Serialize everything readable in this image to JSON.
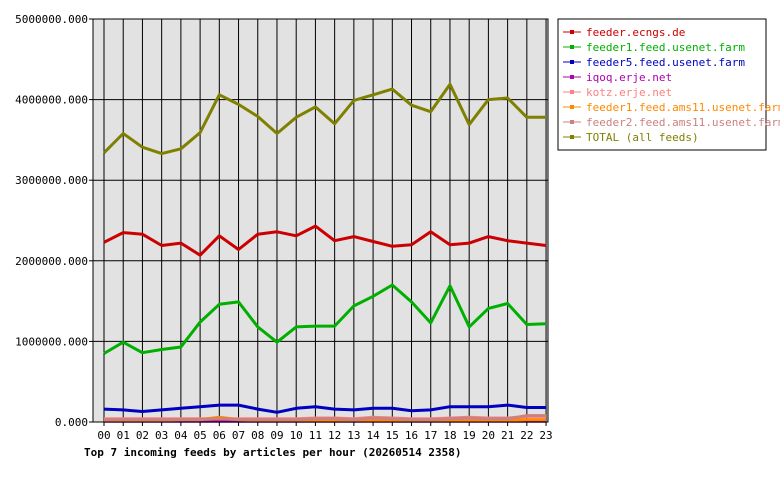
{
  "chart_data": {
    "type": "line",
    "title": "Top 7 incoming feeds by articles per hour (20260514 2358)",
    "xlabel": "",
    "ylabel": "",
    "categories": [
      "00",
      "01",
      "02",
      "03",
      "04",
      "05",
      "06",
      "07",
      "08",
      "09",
      "10",
      "11",
      "12",
      "13",
      "14",
      "15",
      "16",
      "17",
      "18",
      "19",
      "20",
      "21",
      "22",
      "23"
    ],
    "y_ticks": [
      "0.000",
      "1000000.000",
      "2000000.000",
      "3000000.000",
      "4000000.000",
      "5000000.000"
    ],
    "ylim": [
      0,
      5000000
    ],
    "grid": true,
    "legend_placement": "right",
    "series": [
      {
        "name": "feeder.ecngs.de",
        "color": "#cc0000",
        "values": [
          2230000,
          2350000,
          2330000,
          2190000,
          2220000,
          2070000,
          2310000,
          2140000,
          2330000,
          2360000,
          2310000,
          2430000,
          2250000,
          2300000,
          2240000,
          2180000,
          2200000,
          2360000,
          2200000,
          2220000,
          2300000,
          2250000,
          2220000,
          2190000
        ]
      },
      {
        "name": "feeder1.feed.usenet.farm",
        "color": "#00b000",
        "values": [
          850000,
          990000,
          860000,
          900000,
          930000,
          1240000,
          1460000,
          1490000,
          1180000,
          990000,
          1180000,
          1190000,
          1190000,
          1440000,
          1560000,
          1700000,
          1490000,
          1230000,
          1690000,
          1180000,
          1410000,
          1470000,
          1210000,
          1220000
        ]
      },
      {
        "name": "feeder5.feed.usenet.farm",
        "color": "#0000c0",
        "values": [
          160000,
          150000,
          130000,
          150000,
          170000,
          190000,
          210000,
          210000,
          160000,
          120000,
          170000,
          190000,
          160000,
          150000,
          170000,
          170000,
          140000,
          150000,
          190000,
          190000,
          190000,
          210000,
          180000,
          180000
        ]
      },
      {
        "name": "iqoq.erje.net",
        "color": "#b000b0",
        "values": [
          10000,
          10000,
          10000,
          10000,
          10000,
          10000,
          10000,
          10000,
          10000,
          10000,
          10000,
          10000,
          10000,
          10000,
          10000,
          10000,
          10000,
          10000,
          10000,
          10000,
          10000,
          10000,
          10000,
          10000
        ]
      },
      {
        "name": "kotz.erje.net",
        "color": "#ff8080",
        "values": [
          40000,
          40000,
          40000,
          40000,
          40000,
          40000,
          40000,
          40000,
          40000,
          40000,
          40000,
          50000,
          50000,
          40000,
          60000,
          50000,
          40000,
          40000,
          50000,
          60000,
          50000,
          50000,
          70000,
          70000
        ]
      },
      {
        "name": "feeder1.feed.ams11.usenet.farm",
        "color": "#ff8800",
        "values": [
          20000,
          20000,
          20000,
          20000,
          30000,
          30000,
          60000,
          30000,
          20000,
          20000,
          20000,
          20000,
          20000,
          20000,
          20000,
          20000,
          20000,
          20000,
          20000,
          20000,
          20000,
          20000,
          30000,
          30000
        ]
      },
      {
        "name": "feeder2.feed.ams11.usenet.farm",
        "color": "#cc8080",
        "values": [
          30000,
          30000,
          30000,
          30000,
          30000,
          30000,
          40000,
          30000,
          30000,
          30000,
          30000,
          40000,
          40000,
          30000,
          50000,
          40000,
          30000,
          30000,
          40000,
          50000,
          40000,
          40000,
          80000,
          80000
        ]
      },
      {
        "name": "TOTAL (all feeds)",
        "color": "#808000",
        "values": [
          3340000,
          3580000,
          3410000,
          3330000,
          3390000,
          3590000,
          4060000,
          3940000,
          3790000,
          3580000,
          3780000,
          3910000,
          3700000,
          3990000,
          4060000,
          4130000,
          3930000,
          3850000,
          4190000,
          3690000,
          4000000,
          4020000,
          3780000,
          3780000
        ]
      }
    ]
  }
}
